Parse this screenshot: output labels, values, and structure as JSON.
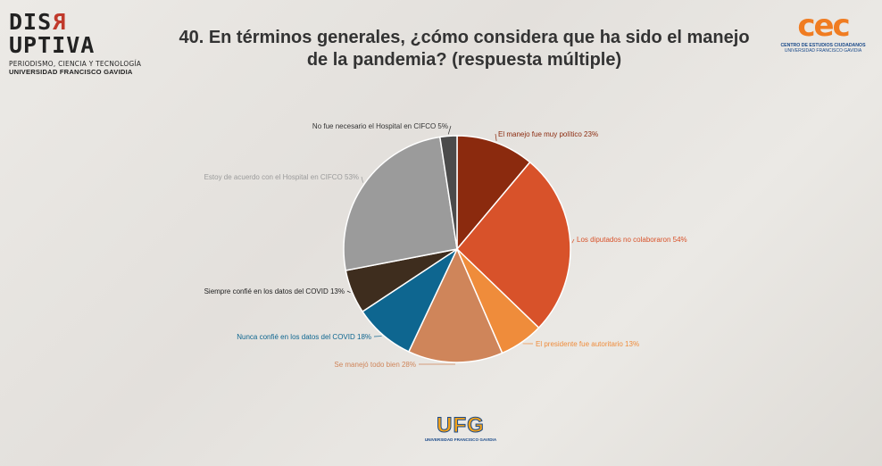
{
  "brand_left": {
    "name_start": "DIS",
    "name_rev": "R",
    "name_end": "UPTIVA",
    "line1": "PERIODISMO, CIENCIA Y TECNOLOGÍA",
    "line2": "UNIVERSIDAD FRANCISCO GAVIDIA"
  },
  "title": "40. En términos generales, ¿cómo considera que ha sido el manejo de la pandemia? (respuesta múltiple)",
  "brand_right": {
    "logo": "cec",
    "line1": "CENTRO DE ESTUDIOS CIUDADANOS",
    "line2": "UNIVERSIDAD FRANCISCO GAVIDIA"
  },
  "brand_bottom": {
    "logo": "UFG",
    "line1": "UNIVERSIDAD FRANCISCO GAVIDIA"
  },
  "chart_data": {
    "type": "pie",
    "title": "40. En términos generales, ¿cómo considera que ha sido el manejo de la pandemia? (respuesta múltiple)",
    "slices": [
      {
        "label": "El manejo fue muy político 23%",
        "value": 23,
        "color": "#8b2a0e"
      },
      {
        "label": "Los diputados no colaboraron 54%",
        "value": 54,
        "color": "#d8522a"
      },
      {
        "label": "El presidente fue autoritario 13%",
        "value": 13,
        "color": "#ef8c3b"
      },
      {
        "label": "Se manejó todo bien 28%",
        "value": 28,
        "color": "#cf855a"
      },
      {
        "label": "Nunca confié en los datos del COVID 18%",
        "value": 18,
        "color": "#0e6690"
      },
      {
        "label": "Siempre confié en los datos del COVID 13%",
        "value": 13,
        "color": "#3e2d1e"
      },
      {
        "label": "Estoy de acuerdo con el Hospital en CIFCO 53%",
        "value": 53,
        "color": "#9b9b9b"
      },
      {
        "label": "No fue necesario el Hospital en CIFCO 5%",
        "value": 5,
        "color": "#4b4b4b"
      }
    ],
    "label_colors": [
      "#8b2a0e",
      "#d8522a",
      "#ef8c3b",
      "#cf855a",
      "#0e6690",
      "#222222",
      "#9b9b9b",
      "#333333"
    ]
  }
}
